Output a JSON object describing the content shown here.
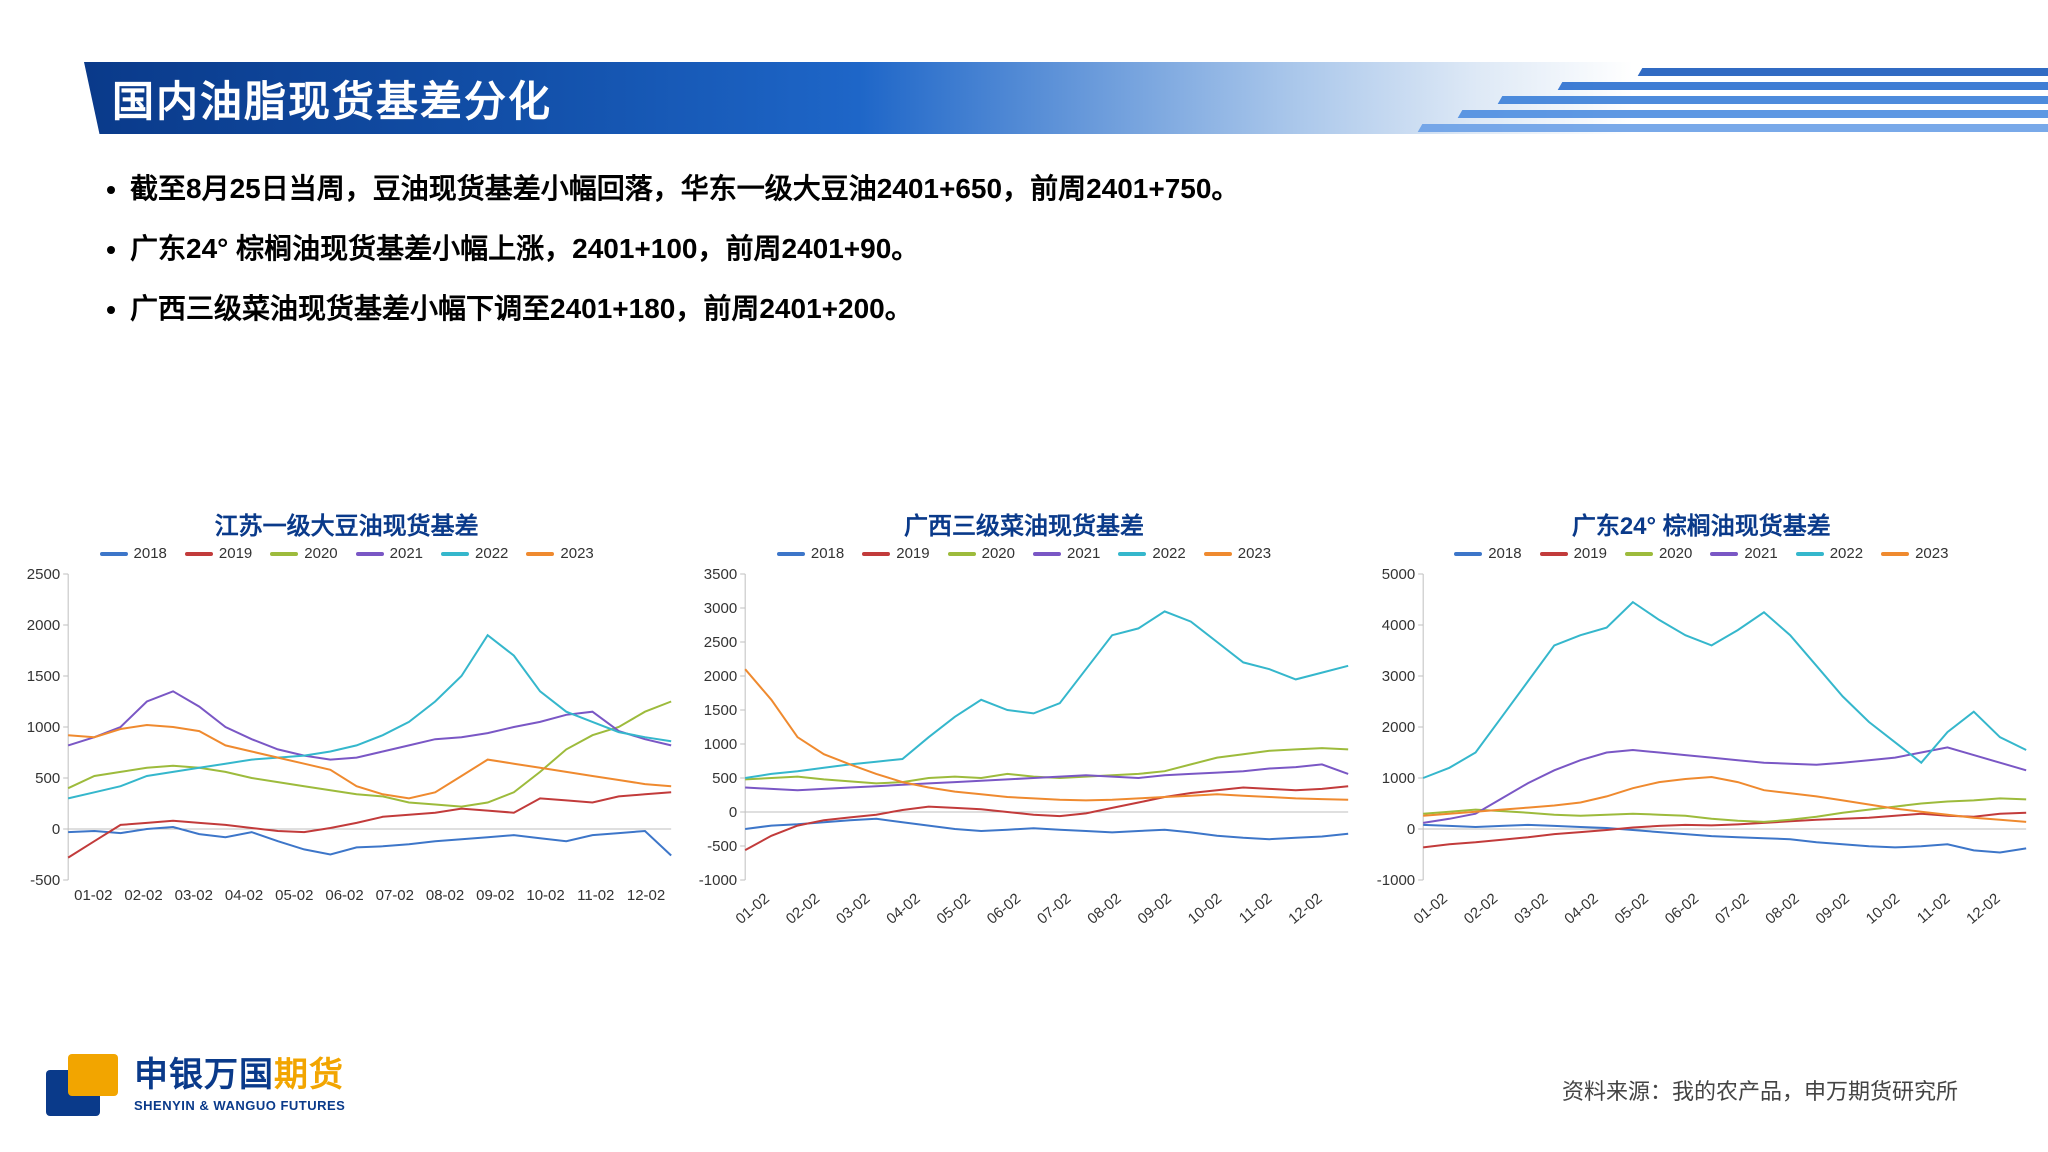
{
  "title": "国内油脂现货基差分化",
  "title_color_gradient": [
    "#0a3a8a",
    "#124fa8",
    "#1e66c8",
    "#a7c5ea",
    "#dee9f6",
    "#ffffff"
  ],
  "bullets": [
    "截至8月25日当周，豆油现货基差小幅回落，华东一级大豆油2401+650，前周2401+750。",
    "广东24° 棕榈油现货基差小幅上涨，2401+100，前周2401+90。",
    "广西三级菜油现货基差小幅下调至2401+180，前周2401+200。"
  ],
  "bullet_fontsize": 28,
  "legend_years": [
    "2018",
    "2019",
    "2020",
    "2021",
    "2022",
    "2023"
  ],
  "series_colors": {
    "2018": "#3d76c9",
    "2019": "#c23b3b",
    "2020": "#9dbb3c",
    "2021": "#7a57c5",
    "2022": "#35b7cc",
    "2023": "#ef8a2f"
  },
  "line_width": 2,
  "x_labels": [
    "01-02",
    "02-02",
    "03-02",
    "04-02",
    "05-02",
    "06-02",
    "07-02",
    "08-02",
    "09-02",
    "10-02",
    "11-02",
    "12-02"
  ],
  "x_label_fontsize": 15,
  "y_label_fontsize": 15,
  "grid_color": "#bfbfbf",
  "background_color": "#ffffff",
  "charts": [
    {
      "id": "chart-soy",
      "title": "江苏一级大豆油现货基差",
      "title_color": "#0a3a8a",
      "title_fontsize": 24,
      "type": "line",
      "ylim": [
        -500,
        2500
      ],
      "ytick_step": 500,
      "x_label_rotation": 0,
      "series": {
        "2018": [
          -30,
          -20,
          -40,
          0,
          20,
          -50,
          -80,
          -30,
          -120,
          -200,
          -250,
          -180,
          -170,
          -150,
          -120,
          -100,
          -80,
          -60,
          -90,
          -120,
          -60,
          -40,
          -20,
          -260
        ],
        "2019": [
          -280,
          -120,
          40,
          60,
          80,
          60,
          40,
          10,
          -20,
          -30,
          10,
          60,
          120,
          140,
          160,
          200,
          180,
          160,
          300,
          280,
          260,
          320,
          340,
          360
        ],
        "2020": [
          400,
          520,
          560,
          600,
          620,
          600,
          560,
          500,
          460,
          420,
          380,
          340,
          320,
          260,
          240,
          220,
          260,
          360,
          560,
          780,
          920,
          1000,
          1150,
          1250
        ],
        "2021": [
          820,
          900,
          1000,
          1250,
          1350,
          1200,
          1000,
          880,
          780,
          720,
          680,
          700,
          760,
          820,
          880,
          900,
          940,
          1000,
          1050,
          1120,
          1150,
          960,
          880,
          820
        ],
        "2022": [
          300,
          360,
          420,
          520,
          560,
          600,
          640,
          680,
          700,
          720,
          760,
          820,
          920,
          1050,
          1250,
          1500,
          1900,
          1700,
          1350,
          1150,
          1050,
          950,
          900,
          860
        ],
        "2023": [
          920,
          900,
          980,
          1020,
          1000,
          960,
          820,
          760,
          700,
          640,
          580,
          420,
          340,
          300,
          360,
          520,
          680,
          640,
          600,
          560,
          520,
          480,
          440,
          420
        ]
      }
    },
    {
      "id": "chart-rape",
      "title": "广西三级菜油现货基差",
      "title_color": "#0a3a8a",
      "title_fontsize": 24,
      "type": "line",
      "ylim": [
        -1000,
        3500
      ],
      "ytick_step": 500,
      "x_label_rotation": -40,
      "series": {
        "2018": [
          -250,
          -200,
          -180,
          -150,
          -120,
          -100,
          -150,
          -200,
          -250,
          -280,
          -260,
          -240,
          -260,
          -280,
          -300,
          -280,
          -260,
          -300,
          -350,
          -380,
          -400,
          -380,
          -360,
          -320
        ],
        "2019": [
          -560,
          -350,
          -200,
          -120,
          -80,
          -40,
          30,
          80,
          60,
          40,
          0,
          -40,
          -60,
          -20,
          60,
          140,
          220,
          280,
          320,
          360,
          340,
          320,
          340,
          380
        ],
        "2020": [
          480,
          500,
          520,
          480,
          450,
          420,
          440,
          500,
          520,
          500,
          560,
          520,
          500,
          520,
          540,
          560,
          600,
          700,
          800,
          850,
          900,
          920,
          940,
          920
        ],
        "2021": [
          360,
          340,
          320,
          340,
          360,
          380,
          400,
          420,
          440,
          460,
          480,
          500,
          520,
          540,
          520,
          500,
          540,
          560,
          580,
          600,
          640,
          660,
          700,
          560
        ],
        "2022": [
          500,
          560,
          600,
          650,
          700,
          740,
          780,
          1100,
          1400,
          1650,
          1500,
          1450,
          1600,
          2100,
          2600,
          2700,
          2950,
          2800,
          2500,
          2200,
          2100,
          1950,
          2050,
          2150
        ],
        "2023": [
          2100,
          1650,
          1100,
          850,
          700,
          560,
          440,
          360,
          300,
          260,
          220,
          200,
          180,
          170,
          180,
          200,
          220,
          240,
          260,
          240,
          220,
          200,
          190,
          180
        ]
      }
    },
    {
      "id": "chart-palm",
      "title": "广东24° 棕榈油现货基差",
      "title_color": "#0a3a8a",
      "title_fontsize": 24,
      "type": "line",
      "ylim": [
        -1000,
        5000
      ],
      "ytick_step": 1000,
      "x_label_rotation": -40,
      "series": {
        "2018": [
          80,
          60,
          40,
          60,
          80,
          60,
          40,
          20,
          -20,
          -60,
          -100,
          -140,
          -160,
          -180,
          -200,
          -260,
          -300,
          -340,
          -360,
          -340,
          -300,
          -420,
          -460,
          -380
        ],
        "2019": [
          -360,
          -300,
          -260,
          -210,
          -160,
          -100,
          -60,
          -20,
          30,
          60,
          80,
          70,
          90,
          120,
          150,
          180,
          200,
          220,
          260,
          300,
          260,
          240,
          300,
          320
        ],
        "2020": [
          300,
          340,
          380,
          350,
          320,
          280,
          260,
          280,
          300,
          280,
          260,
          200,
          160,
          140,
          180,
          240,
          320,
          380,
          440,
          500,
          540,
          560,
          600,
          580
        ],
        "2021": [
          120,
          200,
          300,
          600,
          900,
          1150,
          1350,
          1500,
          1550,
          1500,
          1450,
          1400,
          1350,
          1300,
          1280,
          1260,
          1300,
          1350,
          1400,
          1500,
          1600,
          1450,
          1300,
          1150
        ],
        "2022": [
          1000,
          1200,
          1500,
          2200,
          2900,
          3600,
          3800,
          3950,
          4450,
          4100,
          3800,
          3600,
          3900,
          4250,
          3800,
          3200,
          2600,
          2100,
          1700,
          1300,
          1900,
          2300,
          1800,
          1550
        ],
        "2023": [
          260,
          300,
          340,
          380,
          420,
          460,
          520,
          640,
          800,
          920,
          980,
          1020,
          920,
          760,
          700,
          640,
          560,
          480,
          400,
          340,
          280,
          220,
          180,
          140
        ]
      }
    }
  ],
  "logo": {
    "cn_main": "申银万国",
    "cn_accent": "期货",
    "en": "SHENYIN & WANGUO FUTURES",
    "mark_back_color": "#0a3a8a",
    "mark_front_color": "#f2a500"
  },
  "source_label": "资料来源：我的农产品，申万期货研究所"
}
